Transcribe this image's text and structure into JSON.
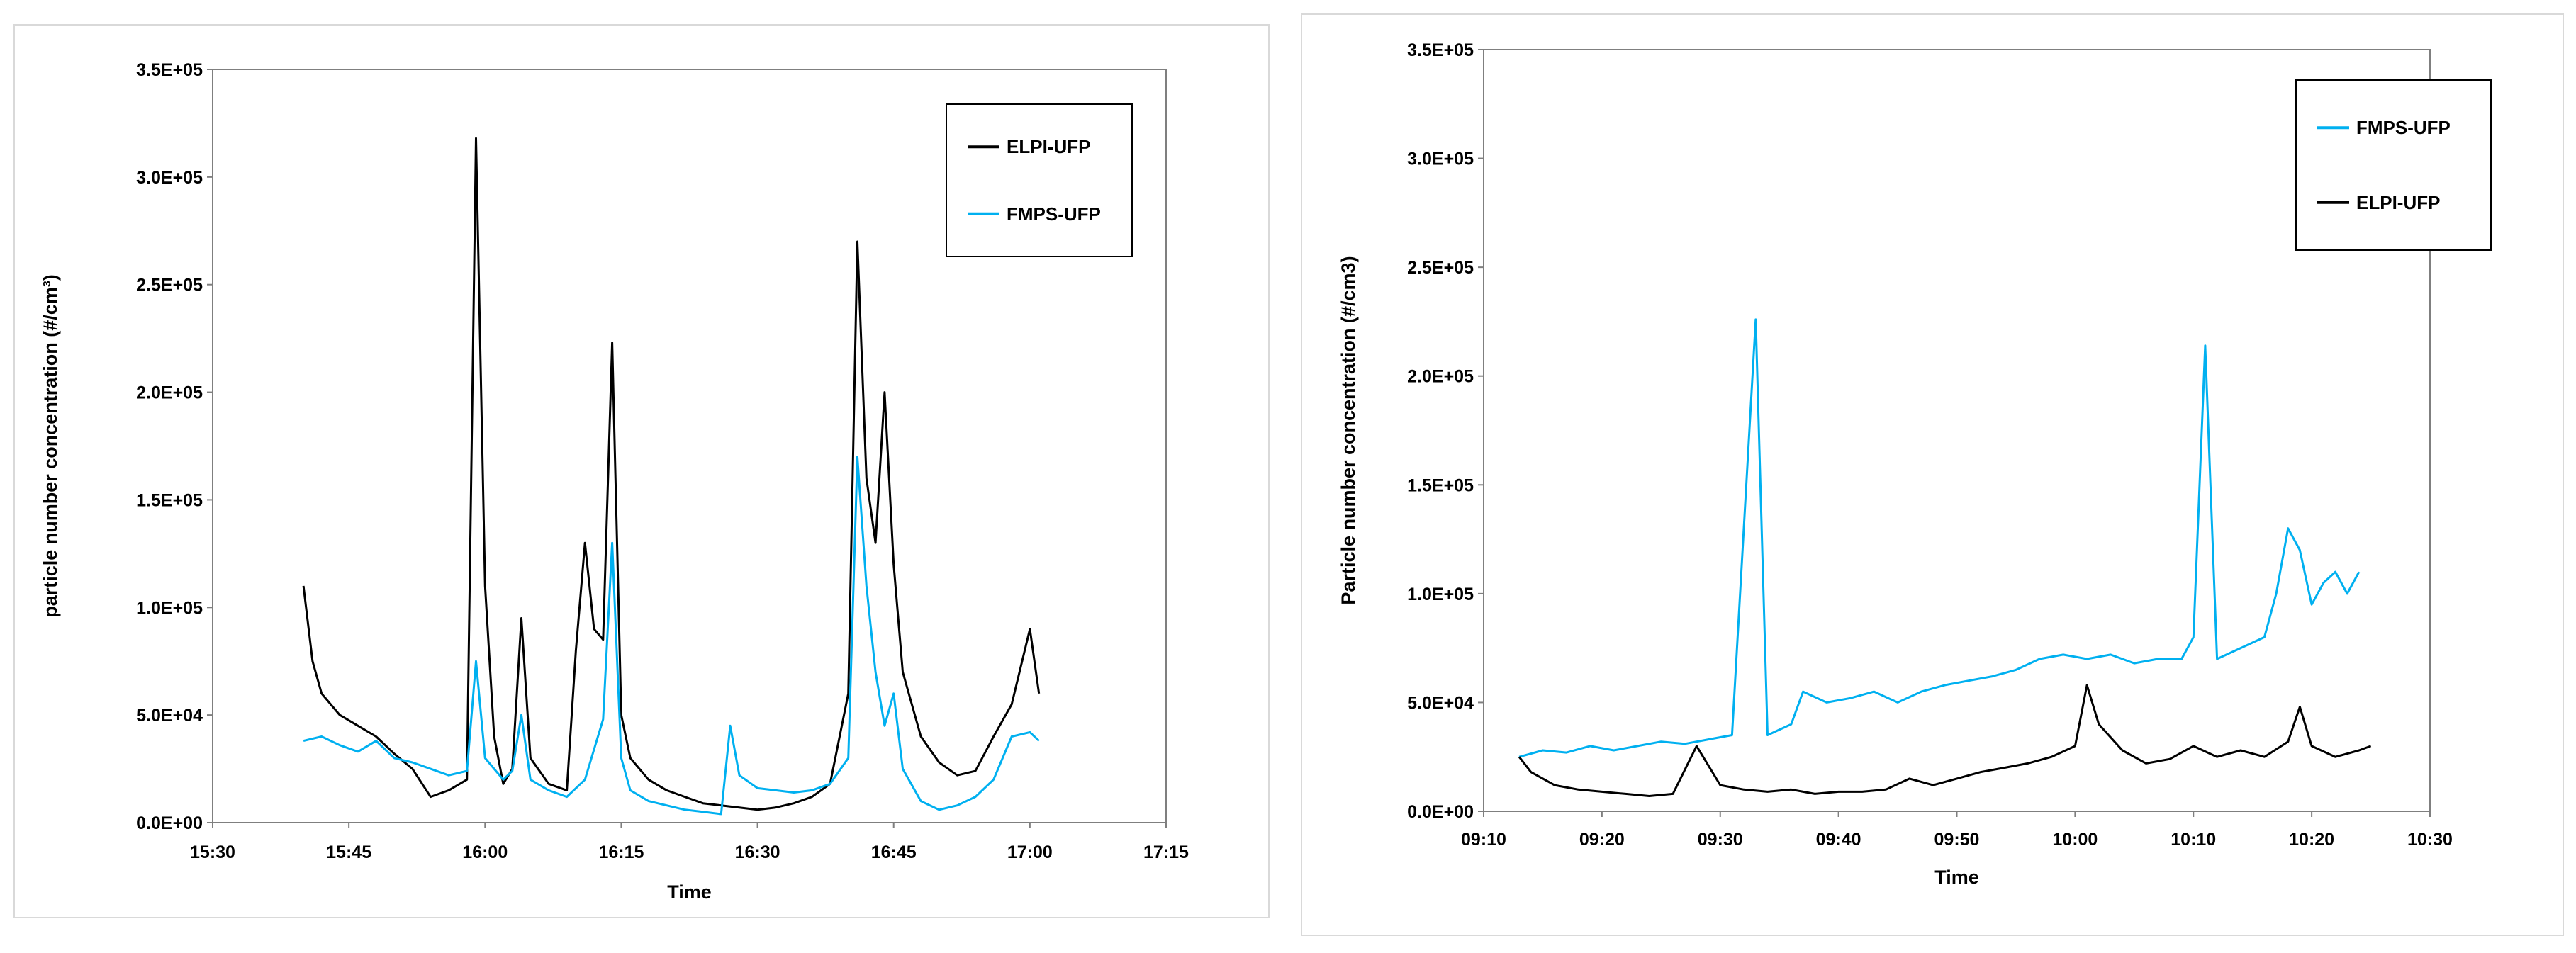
{
  "chart_data": [
    {
      "type": "line",
      "xlabel": "Time",
      "ylabel": "particle number concentration (#/cm³)",
      "x_tick_labels": [
        "15:30",
        "15:45",
        "16:00",
        "16:15",
        "16:30",
        "16:45",
        "17:00",
        "17:15"
      ],
      "y_tick_labels": [
        "0.0E+00",
        "5.0E+04",
        "1.0E+05",
        "1.5E+05",
        "2.0E+05",
        "2.5E+05",
        "3.0E+05",
        "3.5E+05"
      ],
      "xlim": [
        "15:30",
        "17:15"
      ],
      "ylim": [
        0,
        350000
      ],
      "grid": false,
      "legend_position": "top-right",
      "legend": [
        "ELPI-UFP",
        "FMPS-UFP"
      ],
      "series": [
        {
          "name": "ELPI-UFP",
          "color": "#000000",
          "x": [
            "15:40",
            "15:41",
            "15:42",
            "15:44",
            "15:46",
            "15:48",
            "15:50",
            "15:52",
            "15:54",
            "15:56",
            "15:58",
            "15:59",
            "16:00",
            "16:01",
            "16:02",
            "16:03",
            "16:04",
            "16:05",
            "16:07",
            "16:09",
            "16:10",
            "16:11",
            "16:12",
            "16:13",
            "16:14",
            "16:15",
            "16:16",
            "16:18",
            "16:20",
            "16:22",
            "16:24",
            "16:26",
            "16:28",
            "16:30",
            "16:32",
            "16:34",
            "16:36",
            "16:38",
            "16:40",
            "16:41",
            "16:42",
            "16:43",
            "16:44",
            "16:45",
            "16:46",
            "16:48",
            "16:50",
            "16:52",
            "16:54",
            "16:56",
            "16:58",
            "17:00",
            "17:01"
          ],
          "values": [
            110000,
            75000,
            60000,
            50000,
            45000,
            40000,
            32000,
            25000,
            12000,
            15000,
            20000,
            318000,
            110000,
            40000,
            18000,
            25000,
            95000,
            30000,
            18000,
            15000,
            80000,
            130000,
            90000,
            85000,
            223000,
            50000,
            30000,
            20000,
            15000,
            12000,
            9000,
            8000,
            7000,
            6000,
            7000,
            9000,
            12000,
            18000,
            60000,
            270000,
            160000,
            130000,
            200000,
            120000,
            70000,
            40000,
            28000,
            22000,
            24000,
            40000,
            55000,
            90000,
            60000
          ]
        },
        {
          "name": "FMPS-UFP",
          "color": "#00b0f0",
          "x": [
            "15:40",
            "15:42",
            "15:44",
            "15:46",
            "15:48",
            "15:50",
            "15:52",
            "15:54",
            "15:56",
            "15:58",
            "15:59",
            "16:00",
            "16:01",
            "16:02",
            "16:03",
            "16:04",
            "16:05",
            "16:07",
            "16:09",
            "16:11",
            "16:13",
            "16:14",
            "16:15",
            "16:16",
            "16:18",
            "16:20",
            "16:22",
            "16:24",
            "16:26",
            "16:27",
            "16:28",
            "16:30",
            "16:32",
            "16:34",
            "16:36",
            "16:38",
            "16:40",
            "16:41",
            "16:42",
            "16:43",
            "16:44",
            "16:45",
            "16:46",
            "16:48",
            "16:50",
            "16:52",
            "16:54",
            "16:56",
            "16:58",
            "17:00",
            "17:01"
          ],
          "values": [
            38000,
            40000,
            36000,
            33000,
            38000,
            30000,
            28000,
            25000,
            22000,
            24000,
            75000,
            30000,
            25000,
            20000,
            24000,
            50000,
            20000,
            15000,
            12000,
            20000,
            48000,
            130000,
            30000,
            15000,
            10000,
            8000,
            6000,
            5000,
            4000,
            45000,
            22000,
            16000,
            15000,
            14000,
            15000,
            18000,
            30000,
            170000,
            110000,
            70000,
            45000,
            60000,
            25000,
            10000,
            6000,
            8000,
            12000,
            20000,
            40000,
            42000,
            38000
          ]
        }
      ]
    },
    {
      "type": "line",
      "xlabel": "Time",
      "ylabel": "Particle number concentration (#/cm3)",
      "x_tick_labels": [
        "09:10",
        "09:20",
        "09:30",
        "09:40",
        "09:50",
        "10:00",
        "10:10",
        "10:20",
        "10:30"
      ],
      "y_tick_labels": [
        "0.0E+00",
        "5.0E+04",
        "1.0E+05",
        "1.5E+05",
        "2.0E+05",
        "2.5E+05",
        "3.0E+05",
        "3.5E+05"
      ],
      "xlim": [
        "09:10",
        "10:30"
      ],
      "ylim": [
        0,
        350000
      ],
      "grid": false,
      "legend_position": "top-right",
      "legend": [
        "FMPS-UFP",
        "ELPI-UFP"
      ],
      "series": [
        {
          "name": "FMPS-UFP",
          "color": "#00b0f0",
          "x": [
            "09:13",
            "09:15",
            "09:17",
            "09:19",
            "09:21",
            "09:23",
            "09:25",
            "09:27",
            "09:29",
            "09:31",
            "09:33",
            "09:34",
            "09:36",
            "09:37",
            "09:39",
            "09:41",
            "09:43",
            "09:45",
            "09:47",
            "09:49",
            "09:51",
            "09:53",
            "09:55",
            "09:57",
            "09:59",
            "10:01",
            "10:03",
            "10:05",
            "10:07",
            "10:09",
            "10:10",
            "10:11",
            "10:12",
            "10:14",
            "10:16",
            "10:17",
            "10:18",
            "10:19",
            "10:20",
            "10:21",
            "10:22",
            "10:23",
            "10:24"
          ],
          "values": [
            25000,
            28000,
            27000,
            30000,
            28000,
            30000,
            32000,
            31000,
            33000,
            35000,
            226000,
            35000,
            40000,
            55000,
            50000,
            52000,
            55000,
            50000,
            55000,
            58000,
            60000,
            62000,
            65000,
            70000,
            72000,
            70000,
            72000,
            68000,
            70000,
            70000,
            80000,
            214000,
            70000,
            75000,
            80000,
            100000,
            130000,
            120000,
            95000,
            105000,
            110000,
            100000,
            110000
          ]
        },
        {
          "name": "ELPI-UFP",
          "color": "#000000",
          "x": [
            "09:13",
            "09:14",
            "09:16",
            "09:18",
            "09:20",
            "09:22",
            "09:24",
            "09:26",
            "09:28",
            "09:30",
            "09:32",
            "09:34",
            "09:36",
            "09:38",
            "09:40",
            "09:42",
            "09:44",
            "09:46",
            "09:48",
            "09:50",
            "09:52",
            "09:54",
            "09:56",
            "09:58",
            "10:00",
            "10:01",
            "10:02",
            "10:04",
            "10:06",
            "10:08",
            "10:10",
            "10:12",
            "10:14",
            "10:16",
            "10:18",
            "10:19",
            "10:20",
            "10:22",
            "10:24",
            "10:25"
          ],
          "values": [
            25000,
            18000,
            12000,
            10000,
            9000,
            8000,
            7000,
            8000,
            30000,
            12000,
            10000,
            9000,
            10000,
            8000,
            9000,
            9000,
            10000,
            15000,
            12000,
            15000,
            18000,
            20000,
            22000,
            25000,
            30000,
            58000,
            40000,
            28000,
            22000,
            24000,
            30000,
            25000,
            28000,
            25000,
            32000,
            48000,
            30000,
            25000,
            28000,
            30000
          ]
        }
      ]
    }
  ]
}
